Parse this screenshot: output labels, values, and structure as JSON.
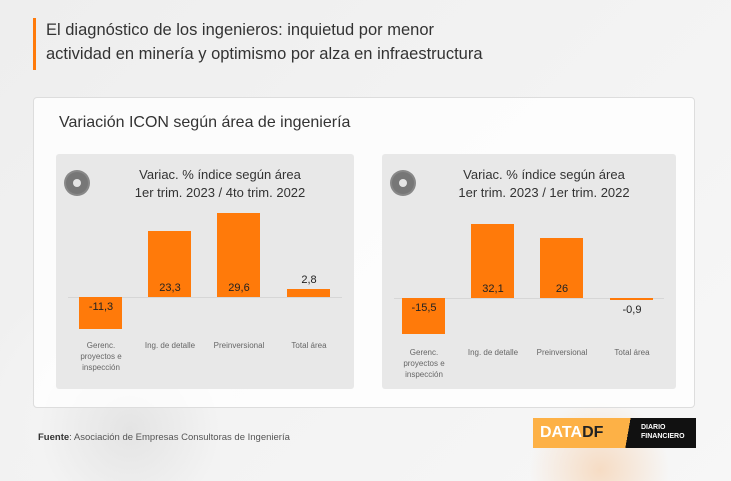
{
  "headline": [
    "El diagnóstico de los ingenieros: inquietud por menor",
    "actividad en minería y optimismo por alza en infraestructura"
  ],
  "card_title": "Variación ICON según área de ingeniería",
  "source_label": "Fuente",
  "source_text": ": Asociación de Empresas Consultoras de Ingeniería",
  "logo": {
    "data": "DATA",
    "df": "DF",
    "diario": "DIARIO",
    "financiero": "FINANCIERO"
  },
  "colors": {
    "bar": "#ff7a0a",
    "accent": "#ff7a0a"
  },
  "chart_data": [
    {
      "type": "bar",
      "title": [
        "Variac. % índice según área",
        "1er trim. 2023 / 4to trim. 2022"
      ],
      "categories": [
        "Gerenc. proyectos e inspección",
        "Ing. de detalle",
        "Preinversional",
        "Total área"
      ],
      "values": [
        -11.3,
        23.3,
        29.6,
        2.8
      ],
      "labels": [
        "-11,3",
        "23,3",
        "29,6",
        "2,8"
      ]
    },
    {
      "type": "bar",
      "title": [
        "Variac. % índice según área",
        "1er trim. 2023 / 1er trim. 2022"
      ],
      "categories": [
        "Gerenc. proyectos e inspección",
        "Ing. de detalle",
        "Preinversional",
        "Total área"
      ],
      "values": [
        -15.5,
        32.1,
        26,
        -0.9
      ],
      "labels": [
        "-15,5",
        "32,1",
        "26",
        "-0,9"
      ]
    }
  ]
}
